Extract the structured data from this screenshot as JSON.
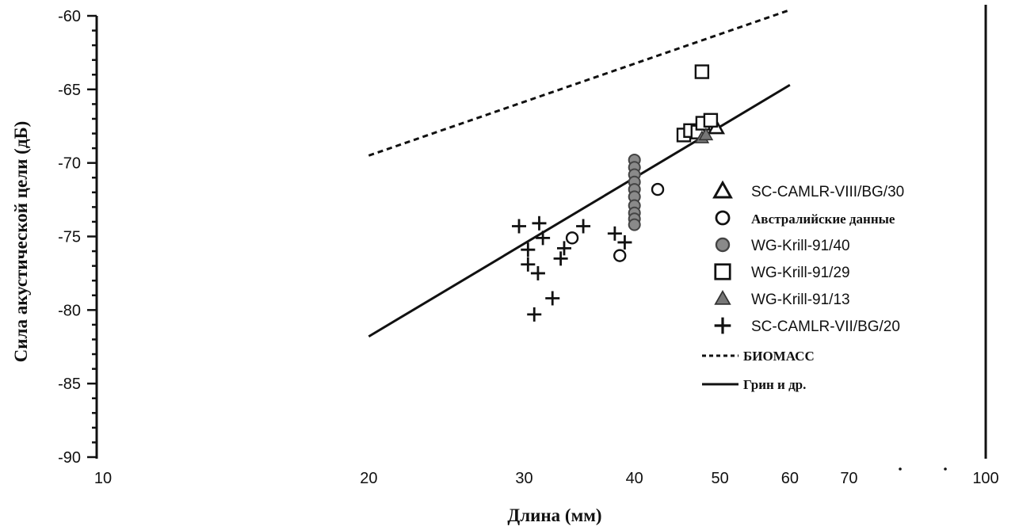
{
  "chart_data": {
    "type": "scatter",
    "xlabel": "Длина  (мм)",
    "ylabel": "Сила  акустической  цели  (дБ)",
    "x_scale": "log",
    "xlim": [
      10,
      100
    ],
    "ylim": [
      -90,
      -60
    ],
    "x_ticks": [
      {
        "value": 10,
        "label": "10"
      },
      {
        "value": 20,
        "label": "20"
      },
      {
        "value": 30,
        "label": "30"
      },
      {
        "value": 40,
        "label": "40"
      },
      {
        "value": 50,
        "label": "50"
      },
      {
        "value": 60,
        "label": "60"
      },
      {
        "value": 70,
        "label": "70"
      },
      {
        "value": 100,
        "label": "100"
      }
    ],
    "y_ticks": [
      {
        "value": -60,
        "label": "-60"
      },
      {
        "value": -65,
        "label": "-65"
      },
      {
        "value": -70,
        "label": "-70"
      },
      {
        "value": -75,
        "label": "-75"
      },
      {
        "value": -80,
        "label": "-80"
      },
      {
        "value": -85,
        "label": "-85"
      },
      {
        "value": -90,
        "label": "-90"
      }
    ],
    "grid": false,
    "legend_position": "right",
    "series": [
      {
        "name": "SC-CAMLR-VIII/BG/30",
        "marker": "triangle-open",
        "points": [
          [
            49.5,
            -67.6
          ]
        ]
      },
      {
        "name": "Австралийские данные",
        "marker": "circle-open",
        "points": [
          [
            34.0,
            -75.1
          ],
          [
            38.5,
            -76.3
          ],
          [
            42.5,
            -71.8
          ]
        ]
      },
      {
        "name": "WG-Krill-91/40",
        "marker": "circle-filled",
        "points": [
          [
            40.0,
            -69.8
          ],
          [
            40.0,
            -70.3
          ],
          [
            40.0,
            -70.8
          ],
          [
            40.0,
            -71.3
          ],
          [
            40.0,
            -71.8
          ],
          [
            40.0,
            -72.3
          ],
          [
            40.0,
            -72.9
          ],
          [
            40.0,
            -73.4
          ],
          [
            40.0,
            -73.8
          ],
          [
            40.0,
            -74.2
          ]
        ]
      },
      {
        "name": "WG-Krill-91/29",
        "marker": "square-open",
        "points": [
          [
            47.7,
            -63.8
          ],
          [
            45.5,
            -68.1
          ],
          [
            46.3,
            -67.8
          ],
          [
            47.2,
            -67.9
          ],
          [
            47.8,
            -67.3
          ],
          [
            48.8,
            -67.1
          ]
        ]
      },
      {
        "name": "WG-Krill-91/13",
        "marker": "triangle-filled",
        "points": [
          [
            47.7,
            -68.3
          ],
          [
            48.2,
            -68.1
          ]
        ]
      },
      {
        "name": "SC-CAMLR-VII/BG/20",
        "marker": "plus",
        "points": [
          [
            29.6,
            -74.3
          ],
          [
            31.2,
            -74.1
          ],
          [
            30.3,
            -75.9
          ],
          [
            31.5,
            -75.1
          ],
          [
            30.3,
            -76.9
          ],
          [
            31.1,
            -77.5
          ],
          [
            33.3,
            -75.8
          ],
          [
            33.0,
            -76.5
          ],
          [
            35.0,
            -74.3
          ],
          [
            38.0,
            -74.8
          ],
          [
            39.0,
            -75.4
          ],
          [
            32.3,
            -79.2
          ],
          [
            30.8,
            -80.3
          ]
        ]
      }
    ],
    "lines": [
      {
        "name": "БИОМАСС",
        "style": "dashed",
        "points": [
          [
            20,
            -69.5
          ],
          [
            60,
            -59.6
          ]
        ]
      },
      {
        "name": "Грин и др.",
        "style": "solid",
        "points": [
          [
            20,
            -81.8
          ],
          [
            60,
            -64.7
          ]
        ]
      }
    ]
  }
}
